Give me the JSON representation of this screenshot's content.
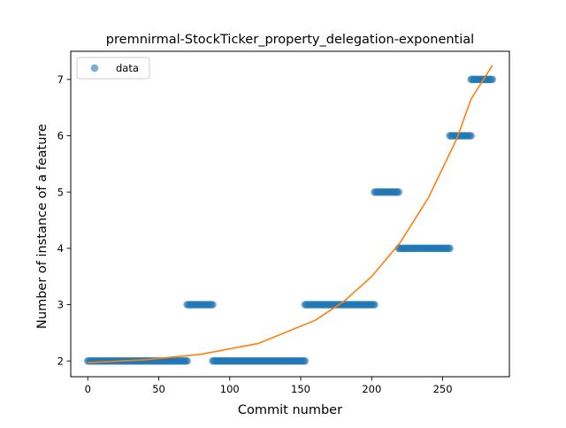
{
  "chart_data": {
    "type": "scatter",
    "title": "premnirmal-StockTicker_property_delegation-exponential",
    "xlabel": "Commit number",
    "ylabel": "Number of instance of a feature",
    "xlim": [
      -12,
      297
    ],
    "ylim": [
      1.72,
      7.5
    ],
    "xticks": [
      0,
      50,
      100,
      150,
      200,
      250
    ],
    "yticks": [
      2,
      3,
      4,
      5,
      6,
      7
    ],
    "x_tick_labels": [
      "0",
      "50",
      "100",
      "150",
      "200",
      "250"
    ],
    "y_tick_labels": [
      "2",
      "3",
      "4",
      "5",
      "6",
      "7"
    ],
    "grid": false,
    "legend": {
      "position": "top-left",
      "entries": [
        "data"
      ]
    },
    "series": [
      {
        "name": "data",
        "kind": "scatter",
        "color": "#1f77b4",
        "segments": [
          {
            "x_start": 0,
            "x_end": 70,
            "y": 2
          },
          {
            "x_start": 70,
            "x_end": 88,
            "y": 3
          },
          {
            "x_start": 88,
            "x_end": 153,
            "y": 2
          },
          {
            "x_start": 153,
            "x_end": 202,
            "y": 3
          },
          {
            "x_start": 202,
            "x_end": 219,
            "y": 5
          },
          {
            "x_start": 219,
            "x_end": 255,
            "y": 4
          },
          {
            "x_start": 255,
            "x_end": 270,
            "y": 6
          },
          {
            "x_start": 270,
            "x_end": 285,
            "y": 7
          }
        ]
      },
      {
        "kind": "line",
        "color": "#ff7f0e",
        "x": [
          0,
          40,
          80,
          120,
          160,
          180,
          200,
          220,
          240,
          260,
          270,
          285
        ],
        "y": [
          1.97,
          2.02,
          2.12,
          2.31,
          2.72,
          3.05,
          3.5,
          4.1,
          4.9,
          5.95,
          6.65,
          7.25
        ]
      }
    ]
  }
}
